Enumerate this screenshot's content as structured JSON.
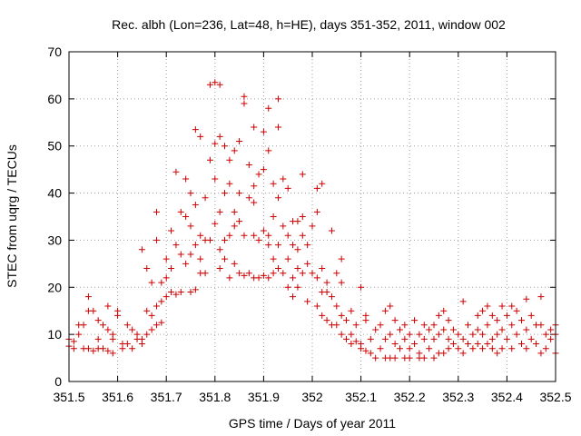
{
  "chart_data": {
    "type": "scatter",
    "title": "Rec. albh (Lon=236, Lat=48, h=HE), days 351-352, 2011, window 002",
    "xlabel": "GPS time / Days of year 2011",
    "ylabel": "STEC from uqrg / TECUs",
    "xlim": [
      351.5,
      352.5
    ],
    "ylim": [
      0,
      70
    ],
    "xticks": [
      "351.5",
      "351.6",
      "351.7",
      "351.8",
      "351.9",
      "352",
      "352.1",
      "352.2",
      "352.3",
      "352.4",
      "352.5"
    ],
    "yticks": [
      "0",
      "10",
      "20",
      "30",
      "40",
      "50",
      "60",
      "70"
    ],
    "grid": true,
    "marker": "plus",
    "color": "#cc0000",
    "points": [
      [
        351.5,
        9
      ],
      [
        351.5,
        7.5
      ],
      [
        351.51,
        8.5
      ],
      [
        351.51,
        7
      ],
      [
        351.52,
        12
      ],
      [
        351.52,
        10
      ],
      [
        351.53,
        7
      ],
      [
        351.53,
        12
      ],
      [
        351.54,
        18
      ],
      [
        351.54,
        15
      ],
      [
        351.54,
        7
      ],
      [
        351.55,
        6.5
      ],
      [
        351.55,
        15
      ],
      [
        351.56,
        13
      ],
      [
        351.56,
        7
      ],
      [
        351.56,
        9
      ],
      [
        351.57,
        12
      ],
      [
        351.57,
        7
      ],
      [
        351.58,
        11
      ],
      [
        351.58,
        16
      ],
      [
        351.58,
        6.5
      ],
      [
        351.59,
        9
      ],
      [
        351.59,
        10
      ],
      [
        351.59,
        6
      ],
      [
        351.6,
        15
      ],
      [
        351.6,
        14
      ],
      [
        351.61,
        8
      ],
      [
        351.61,
        7
      ],
      [
        351.62,
        12
      ],
      [
        351.62,
        8
      ],
      [
        351.63,
        11
      ],
      [
        351.63,
        7
      ],
      [
        351.64,
        10
      ],
      [
        351.64,
        9
      ],
      [
        351.65,
        9
      ],
      [
        351.65,
        8
      ],
      [
        351.65,
        28
      ],
      [
        351.66,
        15
      ],
      [
        351.66,
        10
      ],
      [
        351.66,
        24
      ],
      [
        351.67,
        14
      ],
      [
        351.67,
        11
      ],
      [
        351.67,
        21
      ],
      [
        351.68,
        16
      ],
      [
        351.68,
        12
      ],
      [
        351.68,
        36
      ],
      [
        351.68,
        30
      ],
      [
        351.69,
        17
      ],
      [
        351.69,
        12.5
      ],
      [
        351.69,
        21
      ],
      [
        351.7,
        18
      ],
      [
        351.7,
        22
      ],
      [
        351.7,
        26
      ],
      [
        351.71,
        19
      ],
      [
        351.71,
        24
      ],
      [
        351.71,
        32
      ],
      [
        351.72,
        29
      ],
      [
        351.72,
        44.5
      ],
      [
        351.72,
        18.5
      ],
      [
        351.73,
        19
      ],
      [
        351.73,
        27
      ],
      [
        351.73,
        36
      ],
      [
        351.74,
        25
      ],
      [
        351.74,
        35
      ],
      [
        351.74,
        43
      ],
      [
        351.75,
        19
      ],
      [
        351.75,
        27
      ],
      [
        351.75,
        33
      ],
      [
        351.75,
        40
      ],
      [
        351.76,
        19.5
      ],
      [
        351.76,
        29
      ],
      [
        351.76,
        37.5
      ],
      [
        351.76,
        53.5
      ],
      [
        351.77,
        52
      ],
      [
        351.77,
        23
      ],
      [
        351.77,
        26
      ],
      [
        351.77,
        31
      ],
      [
        351.78,
        23
      ],
      [
        351.78,
        30
      ],
      [
        351.78,
        39
      ],
      [
        351.79,
        63
      ],
      [
        351.79,
        30
      ],
      [
        351.79,
        47
      ],
      [
        351.8,
        63.5
      ],
      [
        351.8,
        33.5
      ],
      [
        351.8,
        50.5
      ],
      [
        351.8,
        43
      ],
      [
        351.81,
        24
      ],
      [
        351.81,
        28
      ],
      [
        351.81,
        36
      ],
      [
        351.81,
        63
      ],
      [
        351.81,
        52
      ],
      [
        351.82,
        26
      ],
      [
        351.82,
        30
      ],
      [
        351.82,
        40
      ],
      [
        351.82,
        50
      ],
      [
        351.83,
        22
      ],
      [
        351.83,
        31
      ],
      [
        351.83,
        42
      ],
      [
        351.83,
        47
      ],
      [
        351.84,
        25
      ],
      [
        351.84,
        36
      ],
      [
        351.84,
        49
      ],
      [
        351.84,
        33
      ],
      [
        351.85,
        23
      ],
      [
        351.85,
        34
      ],
      [
        351.85,
        40
      ],
      [
        351.85,
        51
      ],
      [
        351.86,
        60.5
      ],
      [
        351.86,
        59
      ],
      [
        351.86,
        22.5
      ],
      [
        351.86,
        31
      ],
      [
        351.87,
        39
      ],
      [
        351.87,
        46
      ],
      [
        351.87,
        23
      ],
      [
        351.88,
        22
      ],
      [
        351.88,
        31
      ],
      [
        351.88,
        41.5
      ],
      [
        351.88,
        54
      ],
      [
        351.88,
        38
      ],
      [
        351.89,
        22
      ],
      [
        351.89,
        30
      ],
      [
        351.89,
        44
      ],
      [
        351.9,
        22.5
      ],
      [
        351.9,
        32
      ],
      [
        351.9,
        45
      ],
      [
        351.9,
        53
      ],
      [
        351.91,
        22
      ],
      [
        351.91,
        29
      ],
      [
        351.91,
        49
      ],
      [
        351.91,
        58
      ],
      [
        351.91,
        31
      ],
      [
        351.92,
        23
      ],
      [
        351.92,
        26
      ],
      [
        351.92,
        35
      ],
      [
        351.92,
        42
      ],
      [
        351.93,
        24
      ],
      [
        351.93,
        29
      ],
      [
        351.93,
        54
      ],
      [
        351.93,
        60
      ],
      [
        351.93,
        39
      ],
      [
        351.94,
        23
      ],
      [
        351.94,
        33
      ],
      [
        351.94,
        43
      ],
      [
        351.95,
        20
      ],
      [
        351.95,
        26
      ],
      [
        351.95,
        31
      ],
      [
        351.95,
        41
      ],
      [
        351.96,
        22
      ],
      [
        351.96,
        29
      ],
      [
        351.96,
        34
      ],
      [
        351.96,
        18
      ],
      [
        351.97,
        24
      ],
      [
        351.97,
        28
      ],
      [
        351.97,
        34
      ],
      [
        351.97,
        20
      ],
      [
        351.98,
        44
      ],
      [
        351.98,
        35
      ],
      [
        351.98,
        23
      ],
      [
        351.98,
        31
      ],
      [
        351.99,
        25
      ],
      [
        351.99,
        29
      ],
      [
        351.99,
        17
      ],
      [
        352.0,
        33
      ],
      [
        352.0,
        23
      ],
      [
        352.01,
        41
      ],
      [
        352.01,
        36
      ],
      [
        352.01,
        22
      ],
      [
        352.01,
        16
      ],
      [
        352.02,
        42
      ],
      [
        352.02,
        24
      ],
      [
        352.02,
        19
      ],
      [
        352.02,
        14
      ],
      [
        352.03,
        21
      ],
      [
        352.03,
        19
      ],
      [
        352.03,
        13
      ],
      [
        352.04,
        32
      ],
      [
        352.04,
        18
      ],
      [
        352.04,
        12
      ],
      [
        352.05,
        23
      ],
      [
        352.05,
        16
      ],
      [
        352.05,
        12
      ],
      [
        352.06,
        26
      ],
      [
        352.06,
        21
      ],
      [
        352.06,
        14
      ],
      [
        352.06,
        10
      ],
      [
        352.07,
        13
      ],
      [
        352.07,
        9
      ],
      [
        352.08,
        15
      ],
      [
        352.08,
        10
      ],
      [
        352.08,
        8
      ],
      [
        352.09,
        12
      ],
      [
        352.09,
        8.5
      ],
      [
        352.1,
        20
      ],
      [
        352.1,
        8
      ],
      [
        352.1,
        7
      ],
      [
        352.11,
        13
      ],
      [
        352.11,
        6.5
      ],
      [
        352.11,
        14
      ],
      [
        352.12,
        9
      ],
      [
        352.12,
        6
      ],
      [
        352.13,
        11
      ],
      [
        352.13,
        5
      ],
      [
        352.14,
        12
      ],
      [
        352.14,
        7
      ],
      [
        352.15,
        15
      ],
      [
        352.15,
        9
      ],
      [
        352.15,
        5
      ],
      [
        352.16,
        16
      ],
      [
        352.16,
        10
      ],
      [
        352.16,
        5
      ],
      [
        352.17,
        13
      ],
      [
        352.17,
        8
      ],
      [
        352.17,
        5
      ],
      [
        352.18,
        11
      ],
      [
        352.18,
        7
      ],
      [
        352.19,
        12
      ],
      [
        352.19,
        9
      ],
      [
        352.19,
        5
      ],
      [
        352.2,
        10
      ],
      [
        352.2,
        7
      ],
      [
        352.2,
        5
      ],
      [
        352.21,
        13
      ],
      [
        352.21,
        8
      ],
      [
        352.22,
        10
      ],
      [
        352.22,
        6
      ],
      [
        352.22,
        5
      ],
      [
        352.23,
        12
      ],
      [
        352.23,
        9
      ],
      [
        352.23,
        5
      ],
      [
        352.24,
        11
      ],
      [
        352.24,
        7
      ],
      [
        352.25,
        12
      ],
      [
        352.25,
        9
      ],
      [
        352.25,
        5
      ],
      [
        352.26,
        14
      ],
      [
        352.26,
        10
      ],
      [
        352.26,
        6
      ],
      [
        352.27,
        15
      ],
      [
        352.27,
        11
      ],
      [
        352.27,
        6
      ],
      [
        352.28,
        13
      ],
      [
        352.28,
        9
      ],
      [
        352.28,
        7
      ],
      [
        352.29,
        11
      ],
      [
        352.29,
        8
      ],
      [
        352.3,
        10
      ],
      [
        352.3,
        7
      ],
      [
        352.31,
        17
      ],
      [
        352.31,
        9
      ],
      [
        352.31,
        6
      ],
      [
        352.32,
        12
      ],
      [
        352.32,
        8
      ],
      [
        352.33,
        10
      ],
      [
        352.33,
        7
      ],
      [
        352.34,
        14
      ],
      [
        352.34,
        11
      ],
      [
        352.34,
        8
      ],
      [
        352.35,
        15
      ],
      [
        352.35,
        10
      ],
      [
        352.35,
        7
      ],
      [
        352.36,
        16
      ],
      [
        352.36,
        12
      ],
      [
        352.36,
        8
      ],
      [
        352.37,
        14
      ],
      [
        352.37,
        9
      ],
      [
        352.37,
        7
      ],
      [
        352.38,
        13
      ],
      [
        352.38,
        10
      ],
      [
        352.38,
        6
      ],
      [
        352.39,
        16
      ],
      [
        352.39,
        11
      ],
      [
        352.39,
        7
      ],
      [
        352.4,
        14
      ],
      [
        352.4,
        9
      ],
      [
        352.41,
        16
      ],
      [
        352.41,
        12
      ],
      [
        352.41,
        7
      ],
      [
        352.42,
        15
      ],
      [
        352.42,
        10
      ],
      [
        352.43,
        13
      ],
      [
        352.43,
        8
      ],
      [
        352.44,
        17.5
      ],
      [
        352.44,
        11
      ],
      [
        352.44,
        7
      ],
      [
        352.45,
        14
      ],
      [
        352.45,
        9
      ],
      [
        352.46,
        12
      ],
      [
        352.46,
        8
      ],
      [
        352.47,
        18
      ],
      [
        352.47,
        12
      ],
      [
        352.47,
        6
      ],
      [
        352.48,
        10
      ],
      [
        352.48,
        7
      ],
      [
        352.49,
        11
      ],
      [
        352.49,
        9
      ],
      [
        352.5,
        12
      ],
      [
        352.5,
        10
      ],
      [
        352.5,
        6
      ]
    ]
  }
}
